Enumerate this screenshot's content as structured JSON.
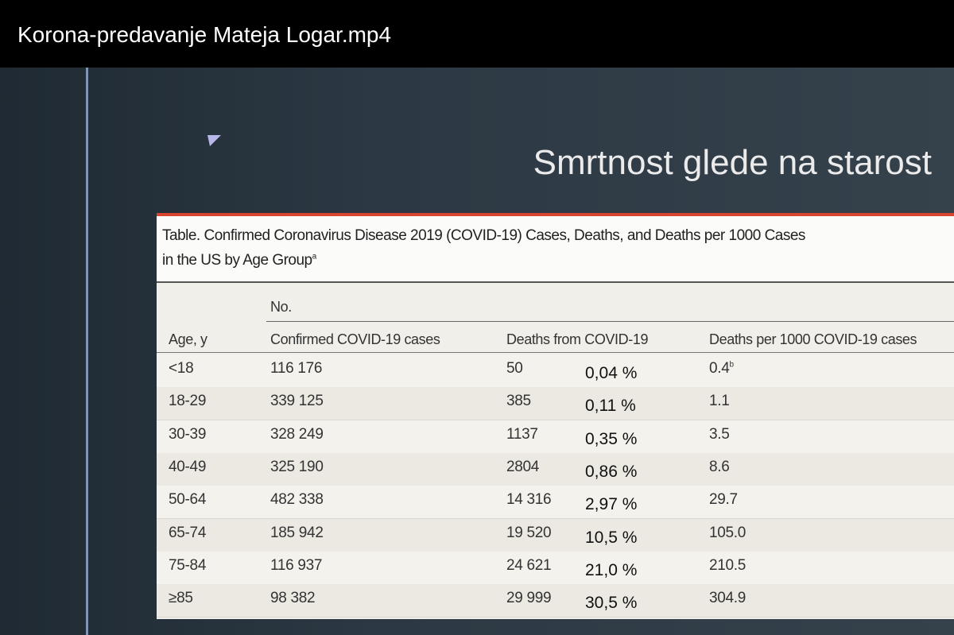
{
  "header": {
    "title": "Korona-predavanje Mateja Logar.mp4"
  },
  "slide": {
    "title": "Smrtnost glede na starost"
  },
  "table": {
    "caption_lines": [
      "Table. Confirmed Coronavirus Disease 2019 (COVID-19) Cases, Deaths, and Deaths per 1000 Cases",
      "in the US by Age Group"
    ],
    "caption_note": "a",
    "group_header": "No.",
    "columns": [
      "Age, y",
      "Confirmed COVID-19 cases",
      "Deaths from COVID-19",
      "Deaths per 1000 COVID-19 cases"
    ],
    "rows": [
      [
        "<18",
        "116 176",
        "50",
        "0,04 %",
        "0.4"
      ],
      [
        "18-29",
        "339 125",
        "385",
        "0,11 %",
        "1.1"
      ],
      [
        "30-39",
        "328 249",
        "1137",
        "0,35 %",
        "3.5"
      ],
      [
        "40-49",
        "325 190",
        "2804",
        "0,86 %",
        "8.6"
      ],
      [
        "50-64",
        "482 338",
        "14 316",
        "2,97 %",
        "29.7"
      ],
      [
        "65-74",
        "185 942",
        "19 520",
        "10,5 %",
        "105.0"
      ],
      [
        "75-84",
        "116 937",
        "24 621",
        "21,0 %",
        "210.5"
      ],
      [
        "≥85",
        "98 382",
        "29 999",
        "30,5 %",
        "304.9"
      ]
    ],
    "first_row_note": "b"
  }
}
